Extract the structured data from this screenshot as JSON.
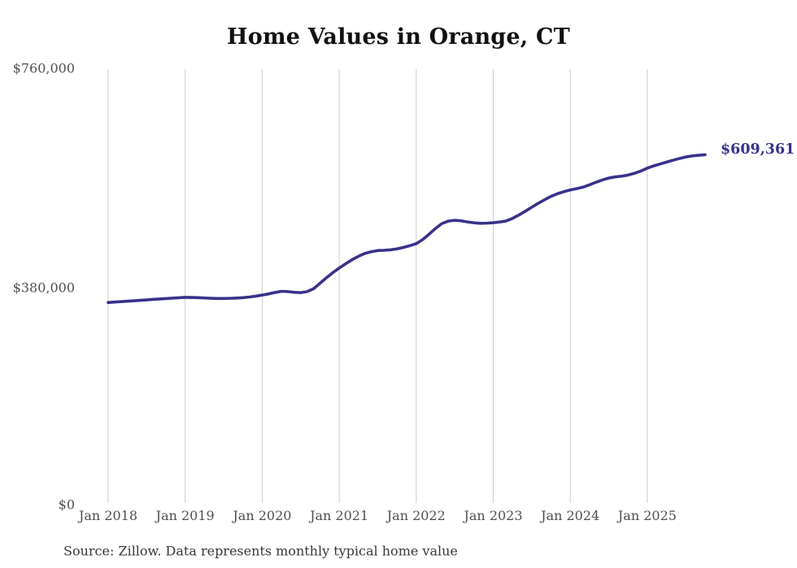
{
  "page": {
    "title": "Home Values in Orange, CT"
  },
  "chart_data": {
    "type": "line",
    "title": "Home Values in Orange, CT",
    "xlabel": "",
    "ylabel": "",
    "ylim": [
      0,
      760000
    ],
    "grid": "vertical-only",
    "legend": "none",
    "y_tick_labels": [
      "$760,000",
      "$380,000",
      "$0"
    ],
    "y_tick_values": [
      760000,
      380000,
      0
    ],
    "x_tick_labels": [
      "Jan 2018",
      "Jan 2019",
      "Jan 2020",
      "Jan 2021",
      "Jan 2022",
      "Jan 2023",
      "Jan 2024",
      "Jan 2025"
    ],
    "series": [
      {
        "name": "Monthly typical home value",
        "color": "#39318a",
        "start": "Jan 2018",
        "frequency": "monthly",
        "last_value": 609361,
        "values": [
          352000,
          352800,
          353600,
          354300,
          355000,
          355800,
          356600,
          357400,
          358100,
          358800,
          359500,
          360300,
          361000,
          360800,
          360400,
          359900,
          359400,
          359100,
          359000,
          359300,
          359800,
          360500,
          361600,
          363100,
          365000,
          367000,
          369500,
          371500,
          371000,
          369800,
          369200,
          371000,
          376000,
          385500,
          395000,
          404000,
          412000,
          419500,
          426500,
          432500,
          437500,
          440500,
          442500,
          443000,
          443800,
          445500,
          448000,
          451000,
          454500,
          461500,
          471000,
          481000,
          489500,
          493800,
          495200,
          494300,
          492300,
          490800,
          490000,
          490200,
          491000,
          492200,
          494000,
          498500,
          504500,
          511000,
          518000,
          524800,
          531000,
          536800,
          541500,
          545000,
          548000,
          550300,
          553000,
          557000,
          561500,
          565500,
          568800,
          570800,
          572000,
          574000,
          577000,
          581000,
          586000,
          590000,
          593300,
          596500,
          599800,
          602800,
          605500,
          607300,
          608500,
          609361
        ]
      }
    ],
    "end_label": "$609,361",
    "source_note": "Source: Zillow. Data represents monthly typical home value",
    "colors": {
      "line": "#39318a",
      "grid": "#cccccc",
      "tick_text": "#4f4f4f",
      "title_text": "#111111",
      "source_text": "#383838"
    }
  }
}
